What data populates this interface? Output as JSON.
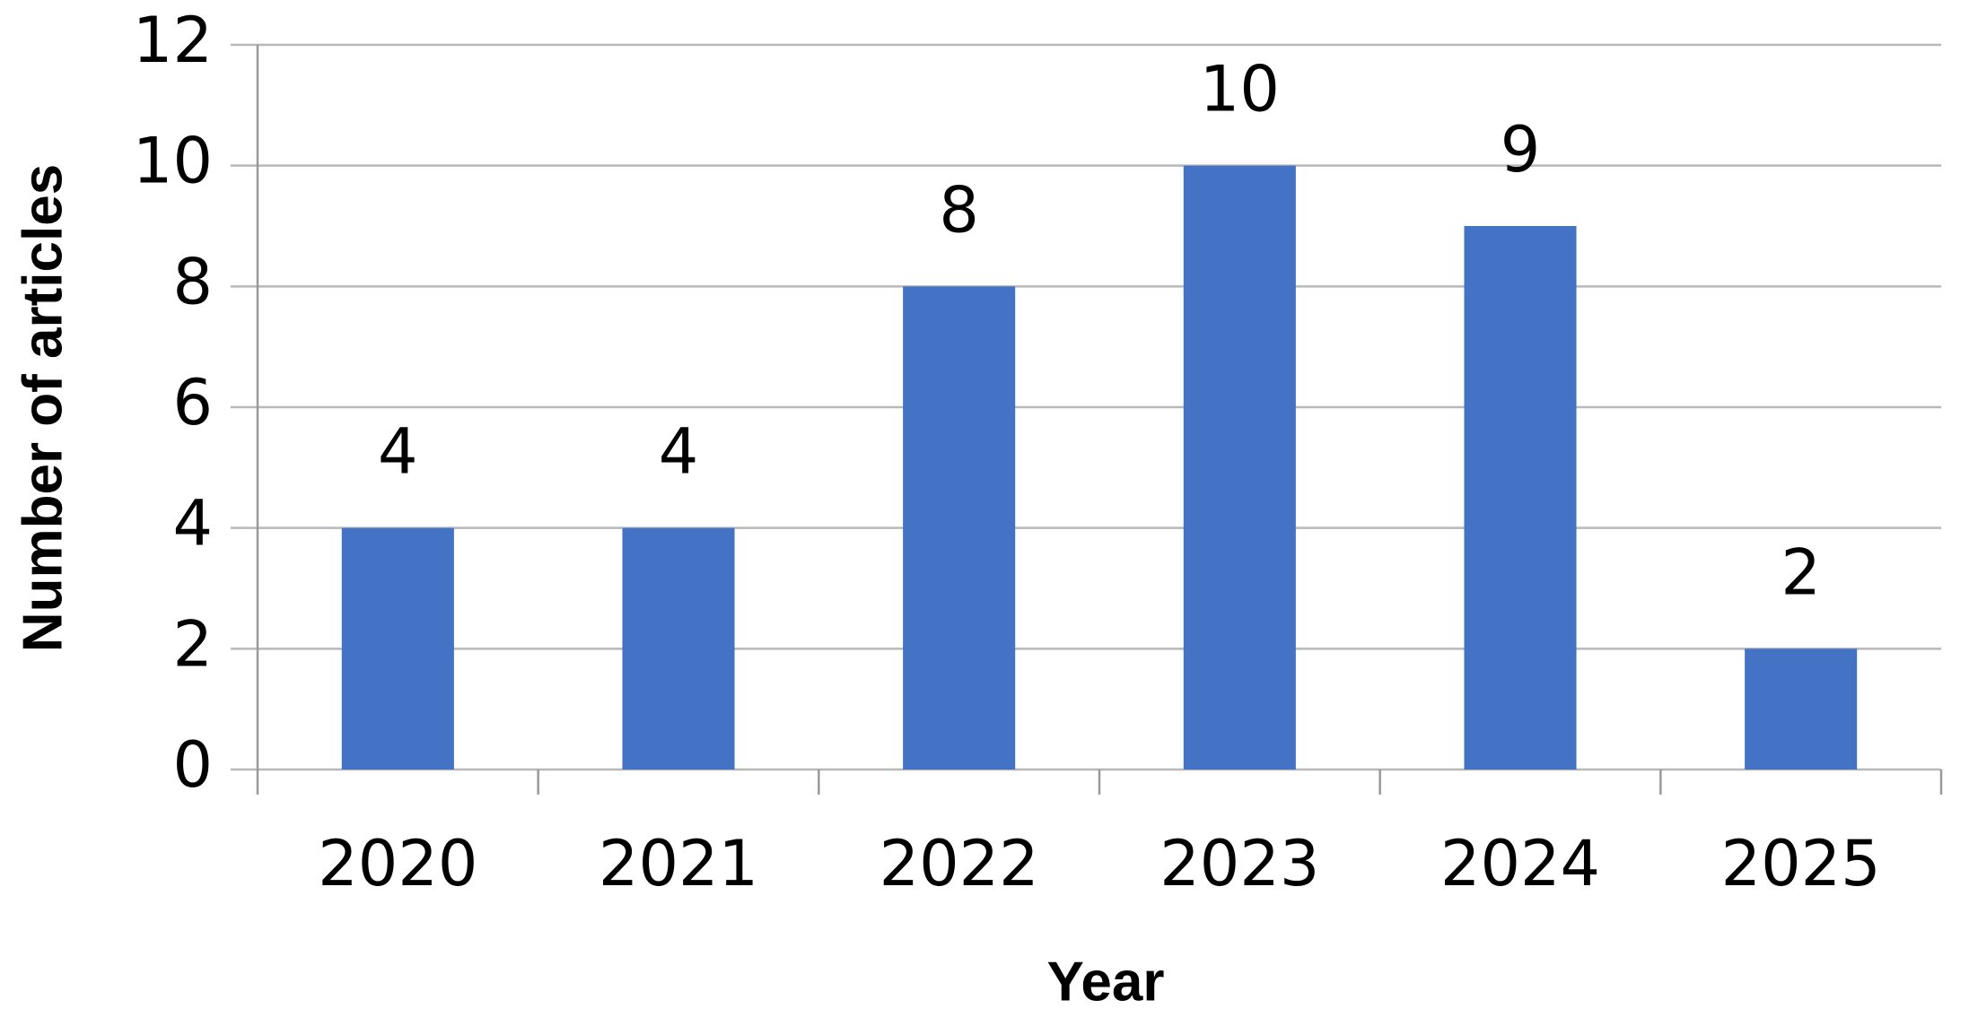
{
  "chart_data": {
    "type": "bar",
    "x_label": "Year",
    "y_label": "Number of articles",
    "categories": [
      "2020",
      "2021",
      "2022",
      "2023",
      "2024",
      "2025"
    ],
    "values": [
      4,
      4,
      8,
      10,
      9,
      2
    ],
    "color": "#4472c4",
    "ylim": [
      0,
      12
    ],
    "yticks": [
      0,
      2,
      4,
      6,
      8,
      10,
      12
    ],
    "grid": true
  }
}
